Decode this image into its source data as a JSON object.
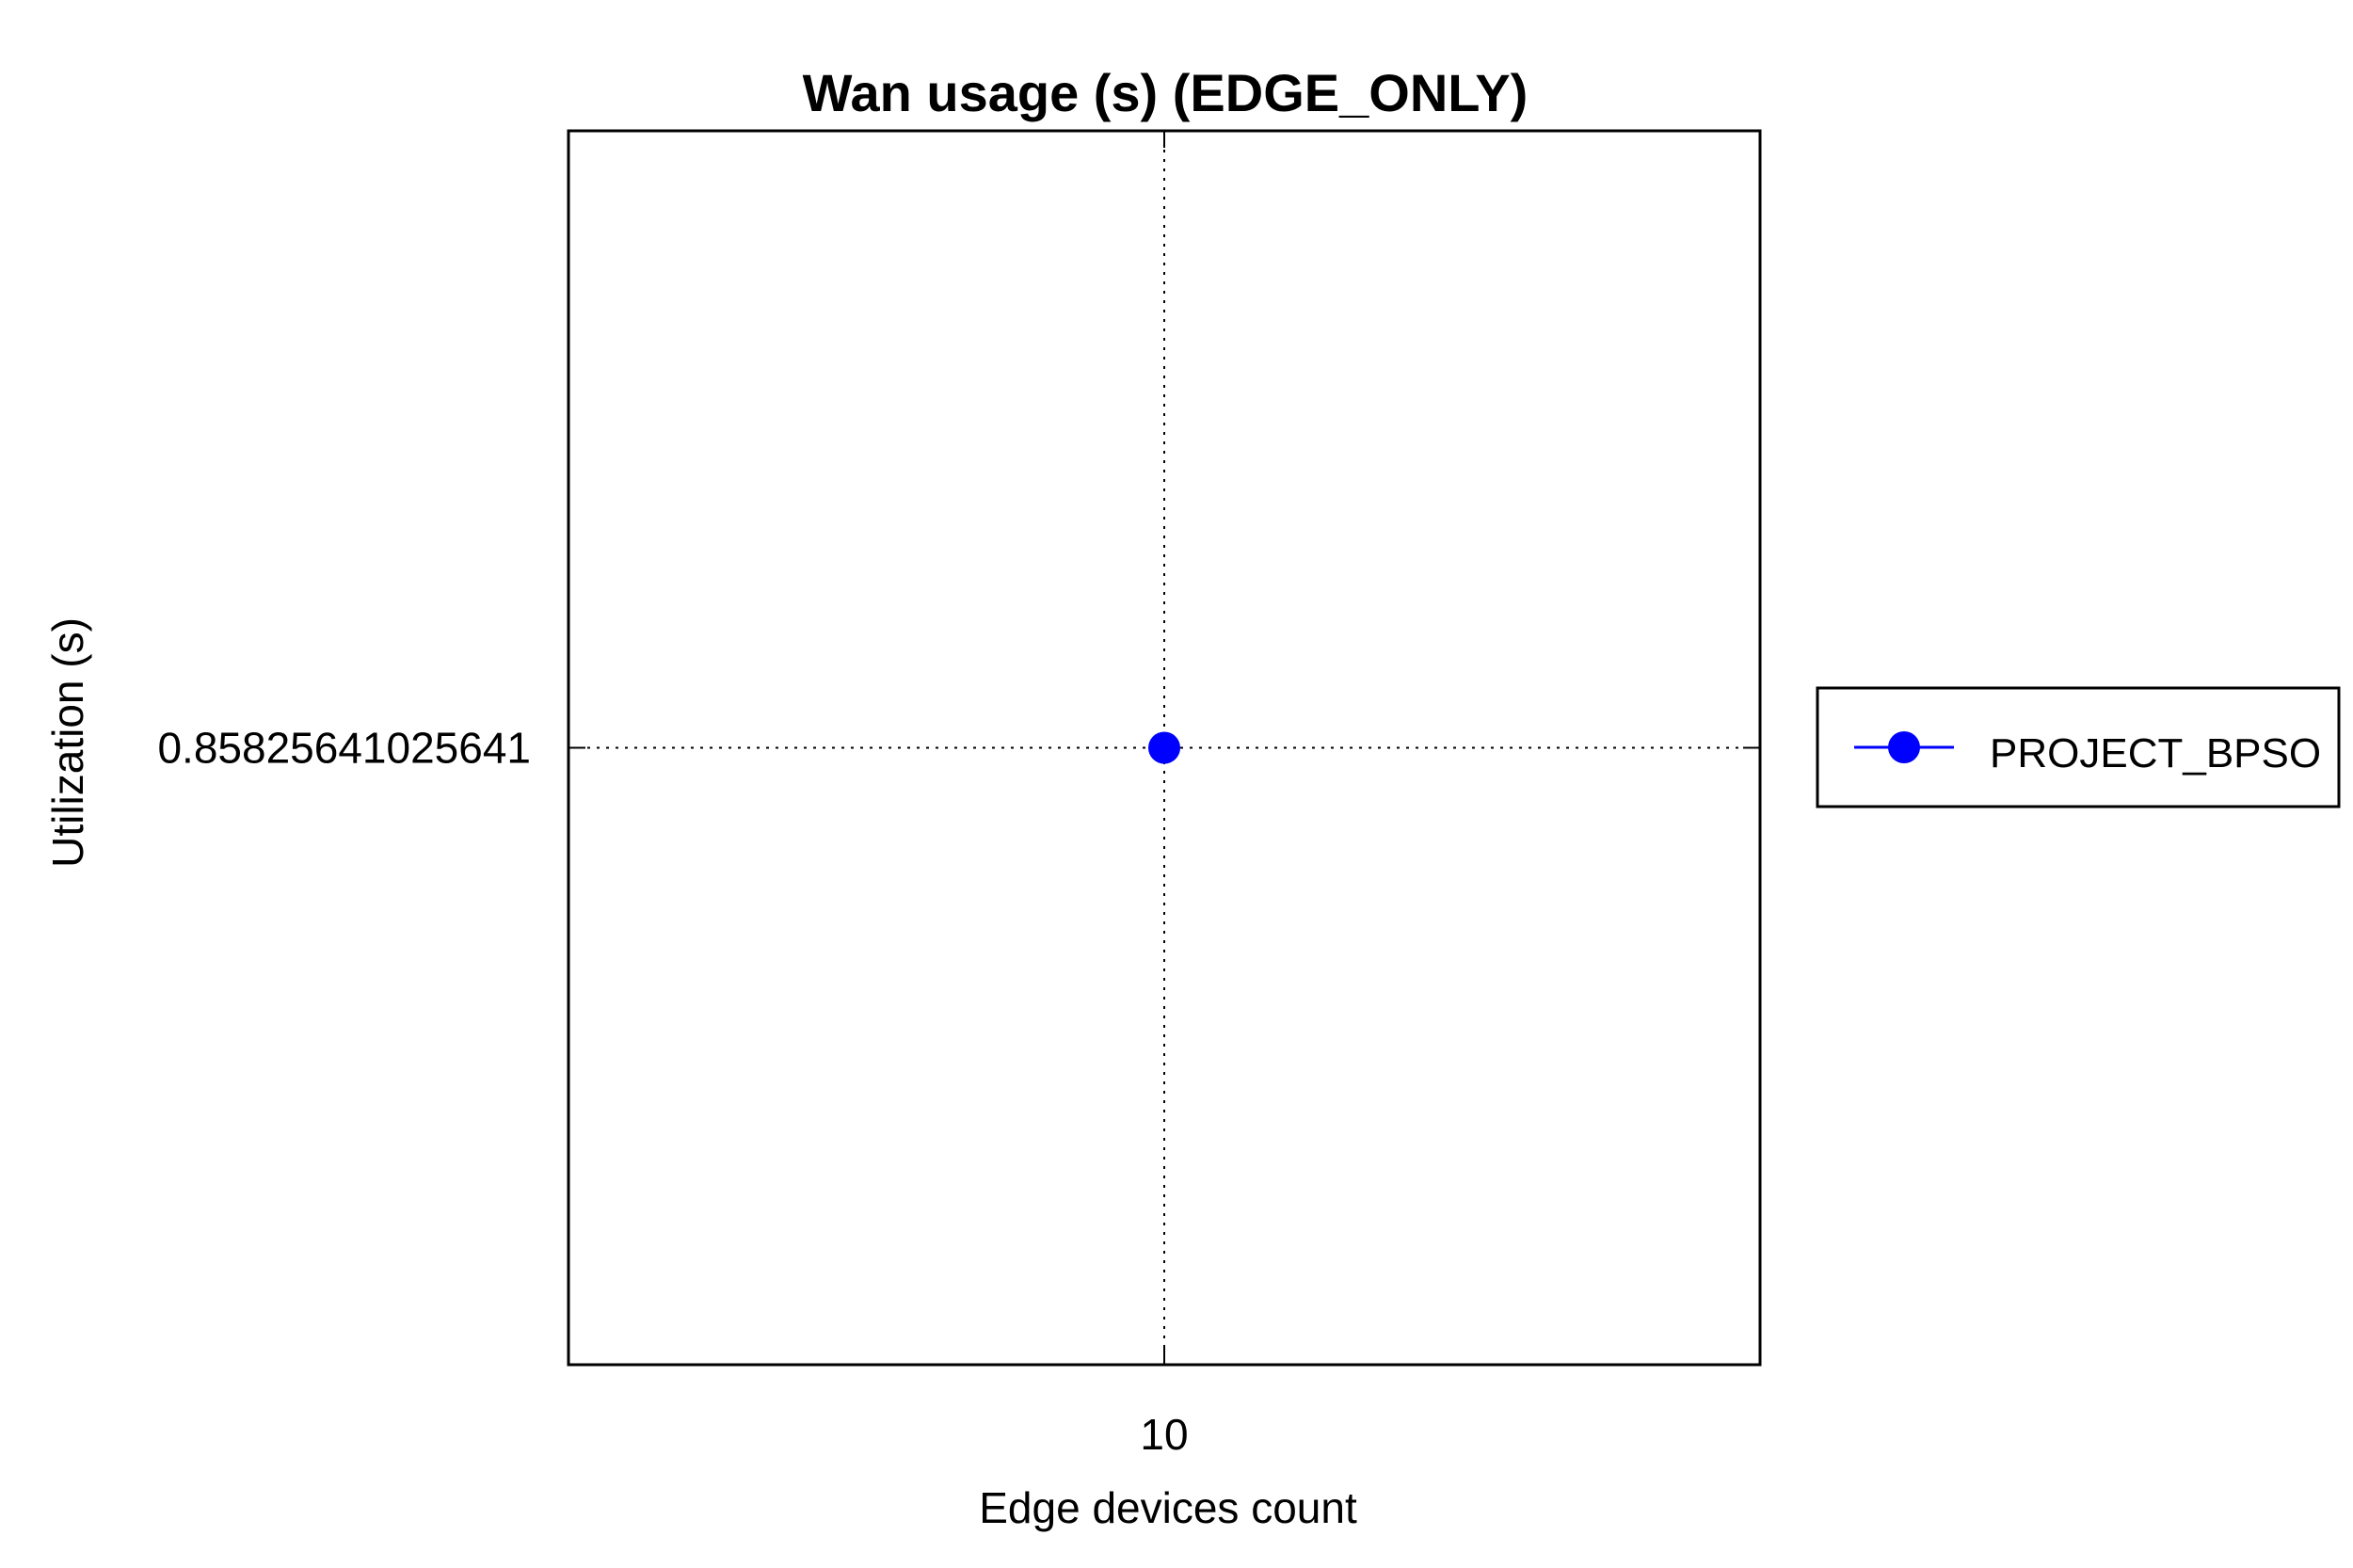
{
  "chart_data": {
    "type": "line",
    "title": "Wan usage (s) (EDGE_ONLY)",
    "xlabel": "Edge devices count",
    "ylabel": "Utilization (s)",
    "x_ticks": [
      "10"
    ],
    "y_ticks": [
      "0.85825641025641"
    ],
    "xlim": [
      9,
      11
    ],
    "ylim": [
      0.8562564,
      0.8602564
    ],
    "grid": true,
    "legend_position": "right",
    "series": [
      {
        "name": "PROJECT_BPSO",
        "color": "#0000ff",
        "marker": "circle",
        "points": [
          {
            "x": 10,
            "y": 0.85825641025641
          }
        ]
      }
    ]
  }
}
